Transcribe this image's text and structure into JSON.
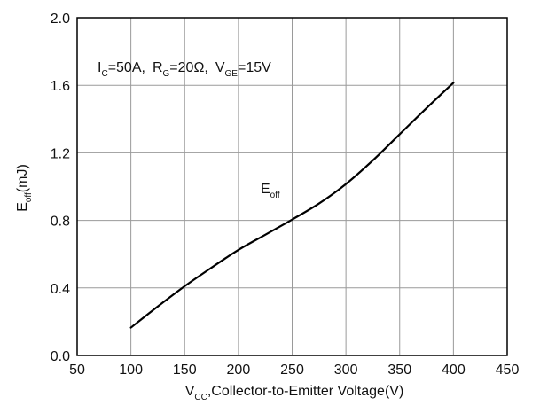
{
  "chart_data": {
    "type": "line",
    "x_axis": {
      "min": 50,
      "max": 450,
      "ticks": [
        50,
        100,
        150,
        200,
        250,
        300,
        350,
        400,
        450
      ],
      "tick_labels": [
        "50",
        "100",
        "150",
        "200",
        "250",
        "300",
        "350",
        "400",
        "450"
      ],
      "label": {
        "main": "V",
        "sub": "CC",
        "rest": ",Collector-to-Emitter Voltage(V)"
      }
    },
    "y_axis": {
      "min": 0.0,
      "max": 2.0,
      "ticks": [
        0.0,
        0.4,
        0.8,
        1.2,
        1.6,
        2.0
      ],
      "tick_labels": [
        "0.0",
        "0.4",
        "0.8",
        "1.2",
        "1.6",
        "2.0"
      ],
      "label": {
        "main": "E",
        "sub": "off",
        "rest": "(mJ)"
      }
    },
    "grid": true,
    "conditions": [
      {
        "main": "I",
        "sub": "C",
        "rest": "=50A,"
      },
      {
        "main": "R",
        "sub": "G",
        "rest": "=20Ω,"
      },
      {
        "main": "V",
        "sub": "GE",
        "rest": "=15V"
      }
    ],
    "series": [
      {
        "name_main": "E",
        "name_sub": "off",
        "color": "#000000",
        "x": [
          100,
          125,
          150,
          175,
          200,
          225,
          250,
          275,
          300,
          325,
          350,
          375,
          400
        ],
        "y": [
          0.165,
          0.29,
          0.41,
          0.52,
          0.625,
          0.715,
          0.805,
          0.9,
          1.015,
          1.155,
          1.31,
          1.465,
          1.615
        ]
      }
    ]
  }
}
